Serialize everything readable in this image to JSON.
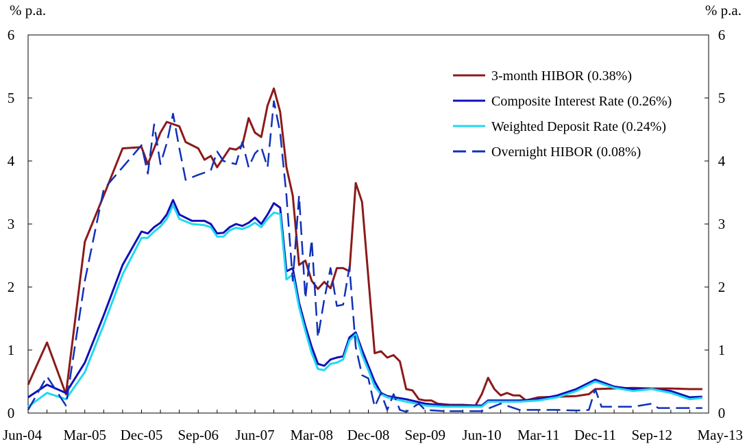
{
  "chart_data": {
    "type": "line",
    "ylabel_left": "% p.a.",
    "ylabel_right": "% p.a.",
    "ylim": [
      0,
      6
    ],
    "yticks": [
      0,
      1,
      2,
      3,
      4,
      5,
      6
    ],
    "x_start": "Jun-04",
    "n_months": 108,
    "xtick_labels": [
      "Jun-04",
      "Mar-05",
      "Dec-05",
      "Sep-06",
      "Jun-07",
      "Mar-08",
      "Dec-08",
      "Sep-09",
      "Jun-10",
      "Mar-11",
      "Dec-11",
      "Sep-12",
      "May-13"
    ],
    "xtick_months": [
      0,
      9,
      18,
      27,
      36,
      45,
      54,
      63,
      72,
      81,
      90,
      99,
      107
    ],
    "legend_position": "top-right",
    "series": [
      {
        "name": "3-month HIBOR (0.38%)",
        "color": "#8B1A1A",
        "dash": "solid",
        "points": [
          [
            0,
            0.45
          ],
          [
            3,
            1.12
          ],
          [
            6,
            0.3
          ],
          [
            9,
            2.72
          ],
          [
            12,
            3.45
          ],
          [
            15,
            4.2
          ],
          [
            18,
            4.22
          ],
          [
            19,
            3.95
          ],
          [
            20,
            4.2
          ],
          [
            21,
            4.45
          ],
          [
            22,
            4.62
          ],
          [
            24,
            4.55
          ],
          [
            25,
            4.3
          ],
          [
            27,
            4.2
          ],
          [
            28,
            4.02
          ],
          [
            29,
            4.08
          ],
          [
            30,
            3.9
          ],
          [
            31,
            4.05
          ],
          [
            32,
            4.2
          ],
          [
            33,
            4.18
          ],
          [
            34,
            4.25
          ],
          [
            35,
            4.68
          ],
          [
            36,
            4.45
          ],
          [
            37,
            4.38
          ],
          [
            38,
            4.88
          ],
          [
            39,
            5.15
          ],
          [
            40,
            4.78
          ],
          [
            41,
            3.9
          ],
          [
            42,
            3.45
          ],
          [
            43,
            2.35
          ],
          [
            44,
            2.42
          ],
          [
            45,
            2.1
          ],
          [
            46,
            1.97
          ],
          [
            47,
            2.08
          ],
          [
            48,
            1.98
          ],
          [
            49,
            2.3
          ],
          [
            50,
            2.3
          ],
          [
            51,
            2.25
          ],
          [
            52,
            3.65
          ],
          [
            53,
            3.35
          ],
          [
            54,
            2.15
          ],
          [
            55,
            0.95
          ],
          [
            56,
            0.98
          ],
          [
            57,
            0.88
          ],
          [
            58,
            0.92
          ],
          [
            59,
            0.82
          ],
          [
            60,
            0.38
          ],
          [
            61,
            0.36
          ],
          [
            62,
            0.22
          ],
          [
            63,
            0.2
          ],
          [
            64,
            0.2
          ],
          [
            65,
            0.15
          ],
          [
            67,
            0.13
          ],
          [
            69,
            0.13
          ],
          [
            71,
            0.12
          ],
          [
            72,
            0.3
          ],
          [
            73,
            0.56
          ],
          [
            74,
            0.38
          ],
          [
            75,
            0.28
          ],
          [
            76,
            0.32
          ],
          [
            77,
            0.28
          ],
          [
            78,
            0.28
          ],
          [
            79,
            0.2
          ],
          [
            81,
            0.25
          ],
          [
            84,
            0.26
          ],
          [
            87,
            0.27
          ],
          [
            89,
            0.3
          ],
          [
            90,
            0.38
          ],
          [
            93,
            0.39
          ],
          [
            96,
            0.4
          ],
          [
            99,
            0.39
          ],
          [
            102,
            0.39
          ],
          [
            105,
            0.38
          ],
          [
            107,
            0.38
          ]
        ]
      },
      {
        "name": "Composite Interest Rate (0.26%)",
        "color": "#1010B8",
        "dash": "solid",
        "points": [
          [
            0,
            0.25
          ],
          [
            3,
            0.45
          ],
          [
            6,
            0.32
          ],
          [
            9,
            0.8
          ],
          [
            12,
            1.55
          ],
          [
            15,
            2.35
          ],
          [
            18,
            2.88
          ],
          [
            19,
            2.85
          ],
          [
            20,
            2.95
          ],
          [
            21,
            3.02
          ],
          [
            22,
            3.15
          ],
          [
            23,
            3.38
          ],
          [
            24,
            3.15
          ],
          [
            26,
            3.05
          ],
          [
            28,
            3.05
          ],
          [
            29,
            3.0
          ],
          [
            30,
            2.85
          ],
          [
            31,
            2.86
          ],
          [
            32,
            2.95
          ],
          [
            33,
            3.0
          ],
          [
            34,
            2.97
          ],
          [
            35,
            3.02
          ],
          [
            36,
            3.1
          ],
          [
            37,
            3.0
          ],
          [
            38,
            3.15
          ],
          [
            39,
            3.33
          ],
          [
            40,
            3.26
          ],
          [
            41,
            2.25
          ],
          [
            42,
            2.3
          ],
          [
            43,
            1.75
          ],
          [
            44,
            1.38
          ],
          [
            45,
            1.05
          ],
          [
            46,
            0.78
          ],
          [
            47,
            0.75
          ],
          [
            48,
            0.85
          ],
          [
            49,
            0.88
          ],
          [
            50,
            0.9
          ],
          [
            51,
            1.2
          ],
          [
            52,
            1.28
          ],
          [
            53,
            1.0
          ],
          [
            54,
            0.75
          ],
          [
            55,
            0.5
          ],
          [
            56,
            0.32
          ],
          [
            57,
            0.27
          ],
          [
            60,
            0.22
          ],
          [
            63,
            0.15
          ],
          [
            66,
            0.12
          ],
          [
            69,
            0.12
          ],
          [
            72,
            0.12
          ],
          [
            73,
            0.2
          ],
          [
            76,
            0.2
          ],
          [
            78,
            0.2
          ],
          [
            81,
            0.22
          ],
          [
            84,
            0.28
          ],
          [
            87,
            0.38
          ],
          [
            90,
            0.53
          ],
          [
            93,
            0.42
          ],
          [
            96,
            0.38
          ],
          [
            99,
            0.38
          ],
          [
            102,
            0.35
          ],
          [
            105,
            0.25
          ],
          [
            107,
            0.26
          ]
        ]
      },
      {
        "name": "Weighted Deposit Rate (0.24%)",
        "color": "#20D8F0",
        "dash": "solid",
        "points": [
          [
            0,
            0.1
          ],
          [
            3,
            0.32
          ],
          [
            6,
            0.22
          ],
          [
            9,
            0.65
          ],
          [
            12,
            1.4
          ],
          [
            15,
            2.2
          ],
          [
            18,
            2.78
          ],
          [
            19,
            2.78
          ],
          [
            20,
            2.88
          ],
          [
            21,
            2.96
          ],
          [
            22,
            3.08
          ],
          [
            23,
            3.3
          ],
          [
            24,
            3.08
          ],
          [
            26,
            3.0
          ],
          [
            28,
            2.98
          ],
          [
            29,
            2.95
          ],
          [
            30,
            2.8
          ],
          [
            31,
            2.8
          ],
          [
            32,
            2.9
          ],
          [
            33,
            2.94
          ],
          [
            34,
            2.92
          ],
          [
            35,
            2.96
          ],
          [
            36,
            3.02
          ],
          [
            37,
            2.95
          ],
          [
            38,
            3.08
          ],
          [
            39,
            3.18
          ],
          [
            40,
            3.16
          ],
          [
            41,
            2.12
          ],
          [
            42,
            2.2
          ],
          [
            43,
            1.68
          ],
          [
            44,
            1.3
          ],
          [
            45,
            0.95
          ],
          [
            46,
            0.7
          ],
          [
            47,
            0.68
          ],
          [
            48,
            0.78
          ],
          [
            49,
            0.8
          ],
          [
            50,
            0.85
          ],
          [
            51,
            1.15
          ],
          [
            52,
            1.25
          ],
          [
            53,
            0.92
          ],
          [
            54,
            0.68
          ],
          [
            55,
            0.42
          ],
          [
            56,
            0.3
          ],
          [
            57,
            0.25
          ],
          [
            60,
            0.18
          ],
          [
            63,
            0.12
          ],
          [
            66,
            0.1
          ],
          [
            69,
            0.1
          ],
          [
            72,
            0.1
          ],
          [
            73,
            0.18
          ],
          [
            76,
            0.18
          ],
          [
            78,
            0.18
          ],
          [
            81,
            0.2
          ],
          [
            84,
            0.25
          ],
          [
            87,
            0.35
          ],
          [
            90,
            0.5
          ],
          [
            93,
            0.4
          ],
          [
            96,
            0.35
          ],
          [
            99,
            0.38
          ],
          [
            102,
            0.32
          ],
          [
            105,
            0.22
          ],
          [
            107,
            0.24
          ]
        ]
      },
      {
        "name": "Overnight HIBOR (0.08%)",
        "color": "#1030B8",
        "dash": "dashed",
        "points": [
          [
            0,
            0.05
          ],
          [
            3,
            0.58
          ],
          [
            6,
            0.12
          ],
          [
            9,
            2.1
          ],
          [
            12,
            3.55
          ],
          [
            15,
            3.9
          ],
          [
            18,
            4.25
          ],
          [
            19,
            3.8
          ],
          [
            20,
            4.58
          ],
          [
            21,
            3.95
          ],
          [
            22,
            4.28
          ],
          [
            23,
            4.75
          ],
          [
            24,
            4.2
          ],
          [
            25,
            3.7
          ],
          [
            27,
            3.78
          ],
          [
            29,
            3.85
          ],
          [
            30,
            4.15
          ],
          [
            31,
            4.0
          ],
          [
            33,
            3.95
          ],
          [
            34,
            4.3
          ],
          [
            35,
            3.9
          ],
          [
            36,
            4.12
          ],
          [
            37,
            4.22
          ],
          [
            38,
            3.9
          ],
          [
            39,
            4.95
          ],
          [
            40,
            4.45
          ],
          [
            41,
            3.45
          ],
          [
            42,
            2.1
          ],
          [
            43,
            3.45
          ],
          [
            44,
            1.82
          ],
          [
            45,
            2.75
          ],
          [
            46,
            1.2
          ],
          [
            47,
            1.8
          ],
          [
            48,
            2.3
          ],
          [
            49,
            1.7
          ],
          [
            50,
            1.72
          ],
          [
            51,
            2.32
          ],
          [
            52,
            1.05
          ],
          [
            53,
            0.6
          ],
          [
            54,
            0.55
          ],
          [
            55,
            0.1
          ],
          [
            56,
            0.32
          ],
          [
            57,
            0.05
          ],
          [
            58,
            0.3
          ],
          [
            59,
            0.05
          ],
          [
            60,
            0.02
          ],
          [
            62,
            0.15
          ],
          [
            63,
            0.05
          ],
          [
            66,
            0.03
          ],
          [
            72,
            0.03
          ],
          [
            75,
            0.15
          ],
          [
            78,
            0.05
          ],
          [
            81,
            0.05
          ],
          [
            84,
            0.05
          ],
          [
            87,
            0.04
          ],
          [
            89,
            0.05
          ],
          [
            90,
            0.38
          ],
          [
            91,
            0.1
          ],
          [
            96,
            0.1
          ],
          [
            99,
            0.15
          ],
          [
            100,
            0.08
          ],
          [
            103,
            0.08
          ],
          [
            107,
            0.08
          ]
        ]
      }
    ]
  }
}
